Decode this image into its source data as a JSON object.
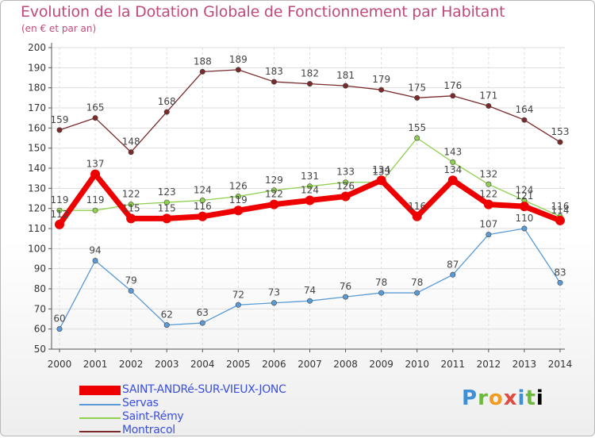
{
  "chart_data": {
    "type": "line",
    "title": "Evolution de la Dotation Globale de Fonctionnement par Habitant",
    "subtitle": "(en € et par an)",
    "x": [
      "2000",
      "2001",
      "2002",
      "2003",
      "2004",
      "2005",
      "2006",
      "2007",
      "2008",
      "2009",
      "2010",
      "2011",
      "2012",
      "2013",
      "2014"
    ],
    "ylim": [
      50,
      200
    ],
    "yticks": [
      50,
      60,
      70,
      80,
      90,
      100,
      110,
      120,
      130,
      140,
      150,
      160,
      170,
      180,
      190,
      200
    ],
    "grid": true,
    "legend_position": "bottom-left",
    "series": [
      {
        "name": "Montracol",
        "color": "#7a2a2a",
        "values": [
          159,
          165,
          148,
          168,
          188,
          189,
          183,
          182,
          181,
          179,
          175,
          176,
          171,
          164,
          153
        ]
      },
      {
        "name": "Saint-Rémy",
        "color": "#8fd14f",
        "values": [
          119,
          119,
          122,
          123,
          124,
          126,
          129,
          131,
          133,
          133,
          155,
          143,
          132,
          124,
          116
        ]
      },
      {
        "name": "Servas",
        "color": "#5a9bd5",
        "values": [
          60,
          94,
          79,
          62,
          63,
          72,
          73,
          74,
          76,
          78,
          78,
          87,
          107,
          110,
          83
        ]
      },
      {
        "name": "SAINT-ANDRé-SUR-VIEUX-JONC",
        "color": "#ee0000",
        "values": [
          112,
          137,
          115,
          115,
          116,
          119,
          122,
          124,
          126,
          134,
          116,
          134,
          122,
          121,
          114
        ]
      }
    ]
  },
  "brand": {
    "letters": [
      "P",
      "r",
      "o",
      "x",
      "i",
      "t",
      "i"
    ]
  }
}
